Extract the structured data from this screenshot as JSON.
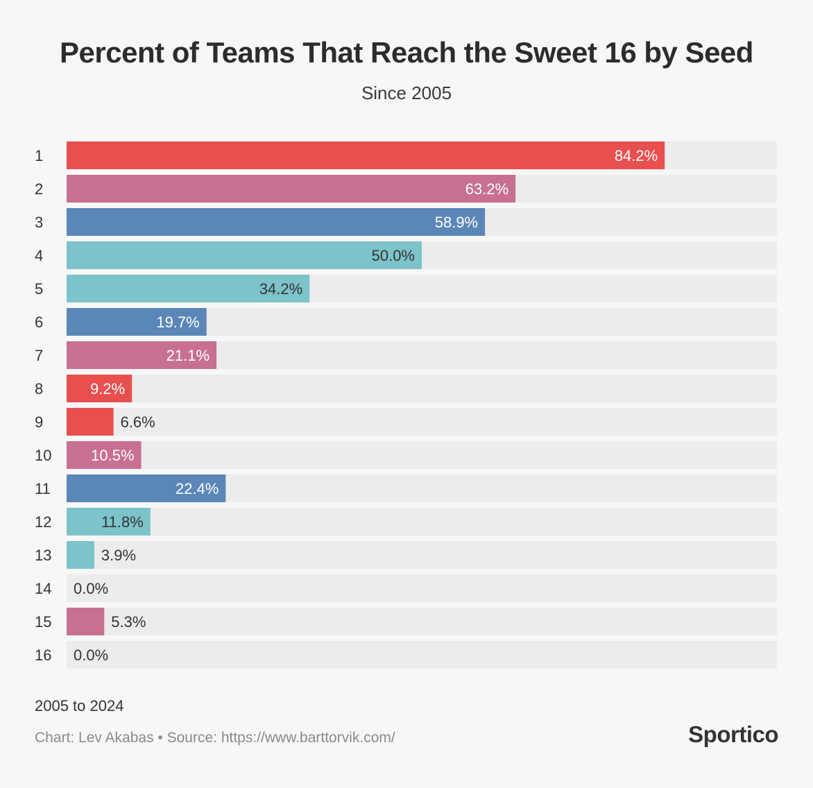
{
  "title": "Percent of Teams That Reach the Sweet 16 by Seed",
  "subtitle": "Since 2005",
  "note": "2005 to 2024",
  "credit": "Chart: Lev Akabas • Source: https://www.barttorvik.com/",
  "logo": "Sportico",
  "colors": {
    "red": "#e84f4f",
    "pink": "#c77092",
    "blue": "#5b87b8",
    "teal": "#7cc3ca",
    "track": "#ececec",
    "label_light": "#ffffff",
    "label_dark": "#333333"
  },
  "chart_data": {
    "type": "bar",
    "orientation": "horizontal",
    "categories": [
      "1",
      "2",
      "3",
      "4",
      "5",
      "6",
      "7",
      "8",
      "9",
      "10",
      "11",
      "12",
      "13",
      "14",
      "15",
      "16"
    ],
    "values": [
      84.2,
      63.2,
      58.9,
      50.0,
      34.2,
      19.7,
      21.1,
      9.2,
      6.6,
      10.5,
      22.4,
      11.8,
      3.9,
      0.0,
      5.3,
      0.0
    ],
    "value_labels": [
      "84.2%",
      "63.2%",
      "58.9%",
      "50.0%",
      "34.2%",
      "19.7%",
      "21.1%",
      "9.2%",
      "6.6%",
      "10.5%",
      "22.4%",
      "11.8%",
      "3.9%",
      "0.0%",
      "5.3%",
      "0.0%"
    ],
    "bar_colors": [
      "red",
      "pink",
      "blue",
      "teal",
      "teal",
      "blue",
      "pink",
      "red",
      "red",
      "pink",
      "blue",
      "teal",
      "teal",
      "teal",
      "pink",
      "red"
    ],
    "label_styles": [
      "light",
      "light",
      "light",
      "dark",
      "dark",
      "light",
      "light",
      "light",
      "dark",
      "light",
      "light",
      "dark",
      "dark",
      "dark",
      "dark",
      "dark"
    ],
    "xlim": [
      0,
      100
    ],
    "grid": false,
    "legend": "none"
  }
}
